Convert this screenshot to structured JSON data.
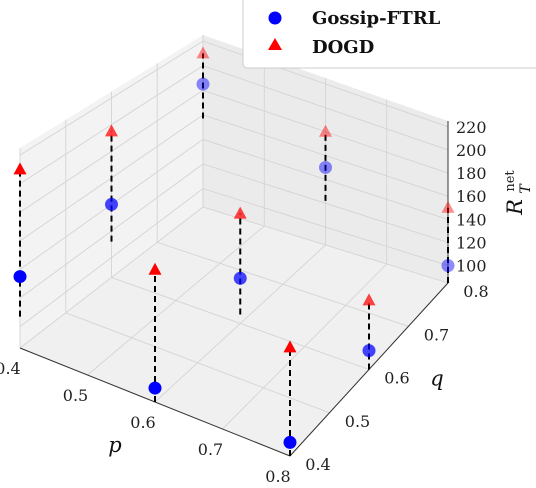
{
  "chart_data": {
    "type": "scatter3d",
    "legend": {
      "placement": "top-right",
      "entries": [
        "Gossip-FTRL",
        "DOGD"
      ]
    },
    "axes": {
      "p": {
        "label": "p",
        "ticks": [
          "0.4",
          "0.5",
          "0.6",
          "0.7",
          "0.8"
        ],
        "range": [
          0.4,
          0.8
        ]
      },
      "q": {
        "label": "q",
        "ticks": [
          "0.4",
          "0.5",
          "0.6",
          "0.7",
          "0.8"
        ],
        "range": [
          0.4,
          0.8
        ]
      },
      "z": {
        "label_main": "R",
        "label_sup": "net",
        "label_sub": "T",
        "ticks": [
          "100",
          "120",
          "140",
          "160",
          "180",
          "200",
          "220"
        ],
        "range": [
          85,
          225
        ]
      }
    },
    "grid": true,
    "series": [
      {
        "name": "Gossip-FTRL",
        "marker": "circle",
        "color": "#0000ff",
        "points": [
          {
            "p": 0.4,
            "q": 0.4,
            "z": 135
          },
          {
            "p": 0.6,
            "q": 0.4,
            "z": 95
          },
          {
            "p": 0.8,
            "q": 0.4,
            "z": 95
          },
          {
            "p": 0.4,
            "q": 0.6,
            "z": 140
          },
          {
            "p": 0.6,
            "q": 0.6,
            "z": 120
          },
          {
            "p": 0.8,
            "q": 0.6,
            "z": 100
          },
          {
            "p": 0.4,
            "q": 0.8,
            "z": 185
          },
          {
            "p": 0.6,
            "q": 0.8,
            "z": 150
          },
          {
            "p": 0.8,
            "q": 0.8,
            "z": 100
          }
        ]
      },
      {
        "name": "DOGD",
        "marker": "triangle",
        "color": "#ff0000",
        "points": [
          {
            "p": 0.4,
            "q": 0.4,
            "z": 210
          },
          {
            "p": 0.6,
            "q": 0.4,
            "z": 180
          },
          {
            "p": 0.8,
            "q": 0.4,
            "z": 165
          },
          {
            "p": 0.4,
            "q": 0.6,
            "z": 195
          },
          {
            "p": 0.6,
            "q": 0.6,
            "z": 170
          },
          {
            "p": 0.8,
            "q": 0.6,
            "z": 140
          },
          {
            "p": 0.4,
            "q": 0.8,
            "z": 210
          },
          {
            "p": 0.6,
            "q": 0.8,
            "z": 180
          },
          {
            "p": 0.8,
            "q": 0.8,
            "z": 150
          }
        ]
      }
    ]
  }
}
